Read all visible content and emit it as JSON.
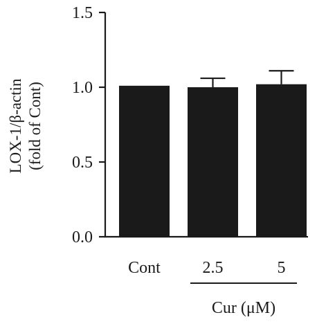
{
  "chart_data": {
    "type": "bar",
    "title": "",
    "categories": [
      "Cont",
      "2.5",
      "5"
    ],
    "values": [
      1.01,
      1.0,
      1.02
    ],
    "error_upper": [
      0.0,
      0.06,
      0.09
    ],
    "ylabel_lines": [
      "LOX-1/β-actin",
      "(fold of Cont)"
    ],
    "xlabel": "",
    "group_label": "Cur (μM)",
    "group_categories": [
      "2.5",
      "5"
    ],
    "ylim": [
      0,
      1.5
    ],
    "yticks": [
      0,
      0.5,
      1,
      1.5
    ],
    "ytick_labels": [
      "0.0",
      "0.5",
      "1.0",
      "1.5"
    ],
    "grid": false,
    "bar_color": "#1a1a1a"
  }
}
